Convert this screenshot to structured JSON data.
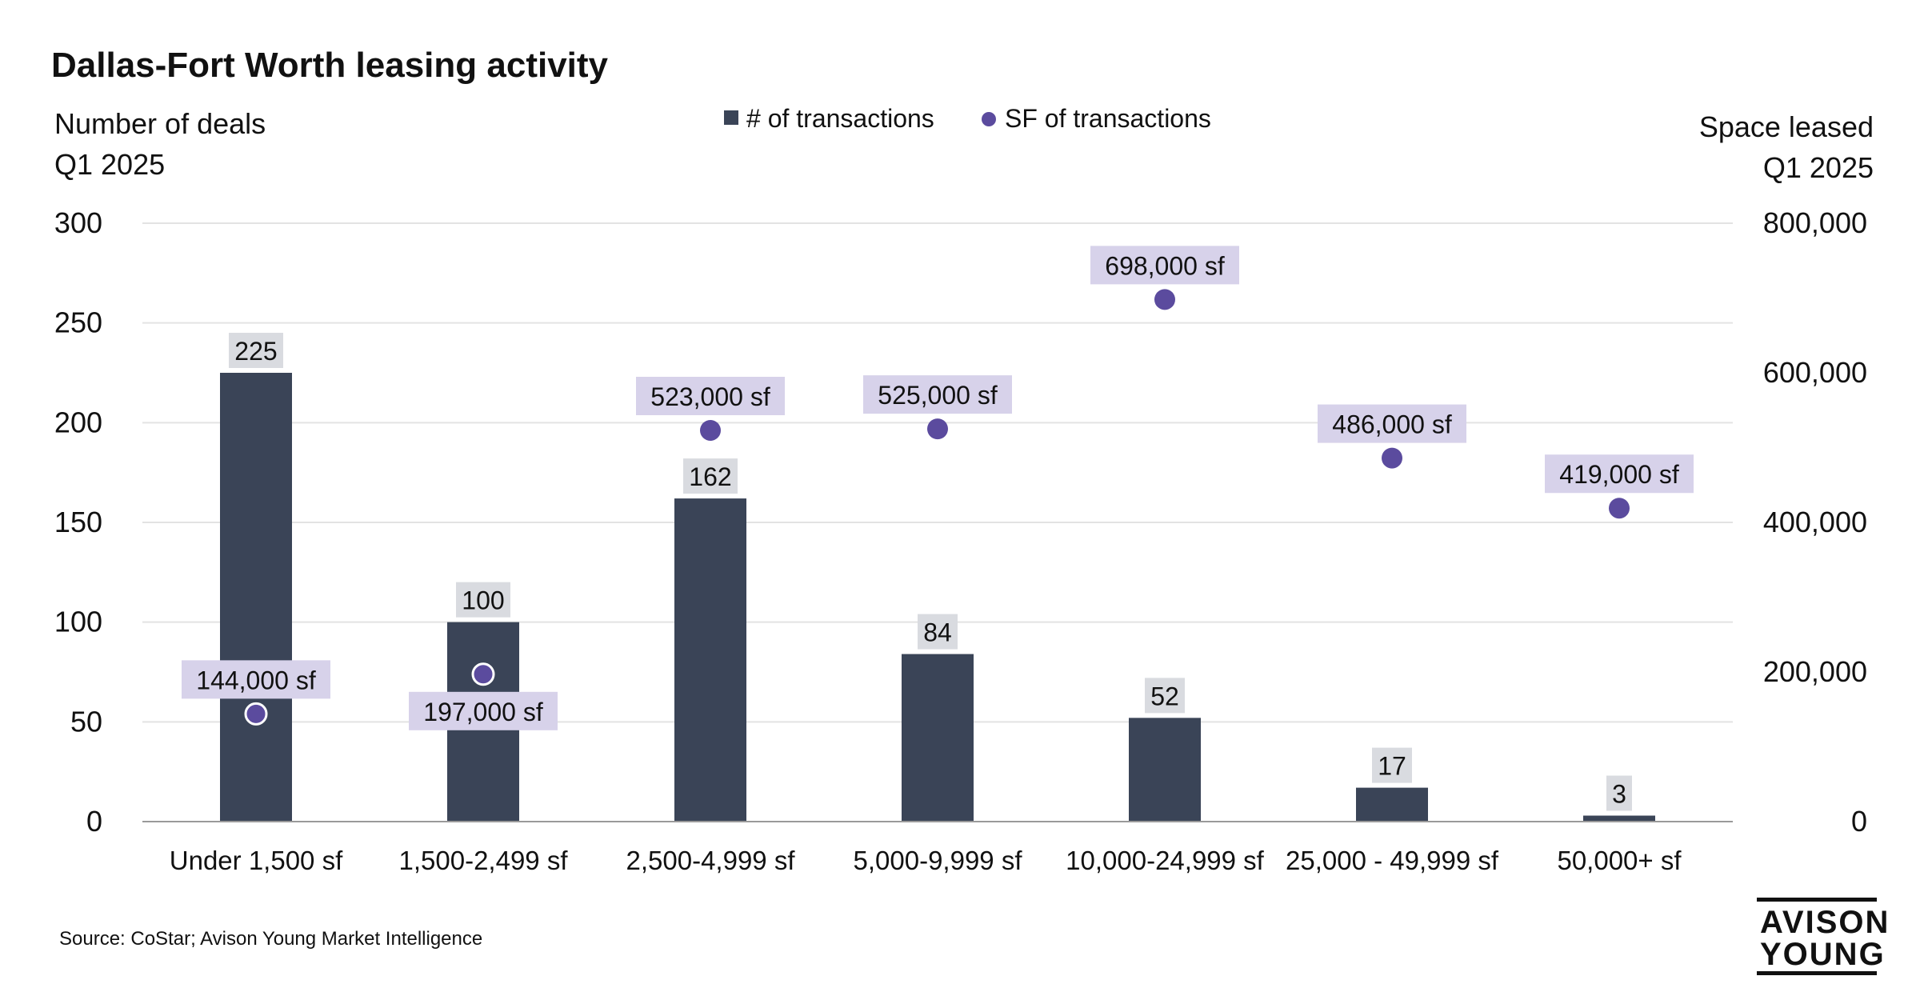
{
  "header": {
    "title": "Dallas-Fort Worth leasing activity"
  },
  "footer": {
    "source": "Source: CoStar; Avison Young Market Intelligence",
    "logo_line1": "AVISON",
    "logo_line2": "YOUNG"
  },
  "colors": {
    "bar": "#3a4457",
    "dot": "#5b4b9e",
    "bar_label_bg": "#d9dbe0",
    "dot_label_bg": "#d7d2ea",
    "grid": "#e3e3e3",
    "baseline": "#9a9a9a"
  },
  "chart_data": {
    "type": "bar",
    "title": "Dallas-Fort Worth leasing activity",
    "categories": [
      "Under 1,500 sf",
      "1,500-2,499 sf",
      "2,500-4,999 sf",
      "5,000-9,999 sf",
      "10,000-24,999 sf",
      "25,000 - 49,999 sf",
      "50,000+ sf"
    ],
    "y_left": {
      "label_line1": "Number of deals",
      "label_line2": "Q1 2025",
      "ylim": [
        0,
        300
      ],
      "ticks": [
        0,
        50,
        100,
        150,
        200,
        250,
        300
      ],
      "tick_labels": [
        "0",
        "50",
        "100",
        "150",
        "200",
        "250",
        "300"
      ]
    },
    "y_right": {
      "label_line1": "Space leased",
      "label_line2": "Q1 2025",
      "ylim": [
        0,
        800000
      ],
      "ticks": [
        0,
        200000,
        400000,
        600000,
        800000
      ],
      "tick_labels": [
        "0",
        "200,000",
        "400,000",
        "600,000",
        "800,000"
      ]
    },
    "series": [
      {
        "name": "# of transactions",
        "kind": "bar",
        "axis": "left",
        "values": [
          225,
          100,
          162,
          84,
          52,
          17,
          3
        ],
        "labels": [
          "225",
          "100",
          "162",
          "84",
          "52",
          "17",
          "3"
        ]
      },
      {
        "name": "SF of transactions",
        "kind": "scatter",
        "axis": "right",
        "values": [
          144000,
          197000,
          523000,
          525000,
          698000,
          486000,
          419000
        ],
        "labels": [
          "144,000 sf",
          "197,000 sf",
          "523,000 sf",
          "525,000 sf",
          "698,000 sf",
          "486,000 sf",
          "419,000 sf"
        ]
      }
    ],
    "legend": [
      {
        "name": "# of transactions",
        "marker": "square"
      },
      {
        "name": "SF of transactions",
        "marker": "circle"
      }
    ],
    "grid": true,
    "legend_position": "top-center"
  }
}
